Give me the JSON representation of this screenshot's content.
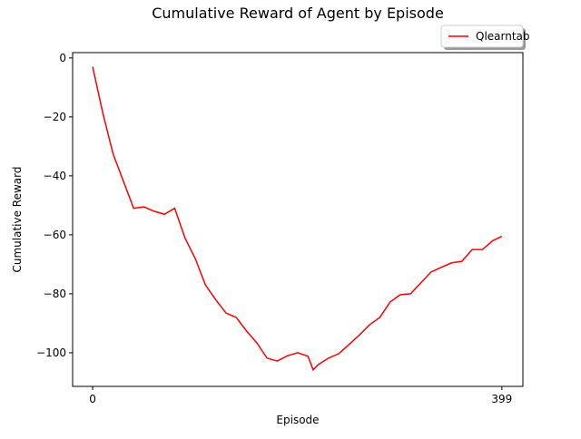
{
  "chart_data": {
    "type": "line",
    "title": "Cumulative Reward of Agent by Episode",
    "x_label": "Episode",
    "y_label": "Cumulative Reward",
    "x": [
      0,
      10,
      20,
      30,
      40,
      50,
      60,
      70,
      80,
      90,
      100,
      110,
      120,
      130,
      140,
      150,
      160,
      170,
      180,
      190,
      200,
      210,
      215,
      220,
      230,
      240,
      250,
      260,
      270,
      280,
      290,
      300,
      310,
      320,
      330,
      340,
      350,
      360,
      370,
      380,
      390,
      399
    ],
    "series": [
      {
        "name": "Qlearntab",
        "color": "#ff0000",
        "values": [
          -3,
          -18.8,
          -32.6,
          -41.8,
          -51,
          -50.5,
          -52,
          -53,
          -51,
          -61,
          -68,
          -77,
          -82,
          -86.5,
          -88,
          -92.6,
          -96.6,
          -101.8,
          -102.8,
          -101,
          -100,
          -101.2,
          -105.8,
          -104,
          -101.8,
          -100.3,
          -97.2,
          -94,
          -90.5,
          -88,
          -82.8,
          -80.3,
          -80,
          -76.3,
          -72.6,
          -71,
          -69.5,
          -69,
          -65,
          -65,
          -62,
          -60.5
        ]
      }
    ],
    "xlim": [
      -19.5,
      419.5
    ],
    "xticks": [
      0,
      399
    ],
    "ylim": [
      -111.4,
      1.8
    ],
    "yticks": [
      {
        "value": -100,
        "label": "−100"
      },
      {
        "value": -80,
        "label": "−80"
      },
      {
        "value": -60,
        "label": "−60"
      },
      {
        "value": -40,
        "label": "−40"
      },
      {
        "value": -20,
        "label": "−20"
      },
      0
    ],
    "legend": "upper right"
  }
}
